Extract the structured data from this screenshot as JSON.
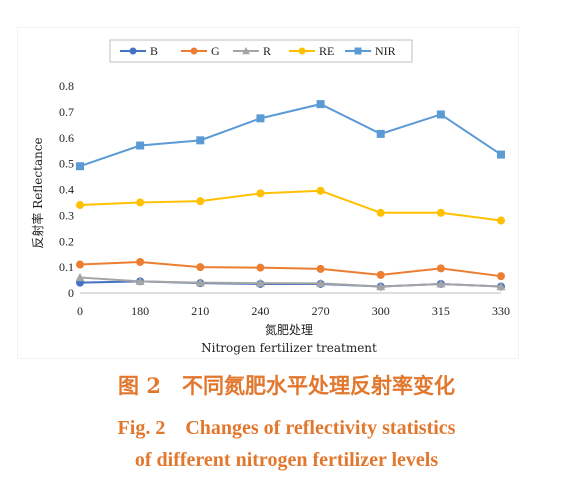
{
  "chart_data": {
    "type": "line",
    "categories": [
      "0",
      "180",
      "210",
      "240",
      "270",
      "300",
      "315",
      "330"
    ],
    "series": [
      {
        "name": "B",
        "color": "#4472c4",
        "marker": "circle",
        "values": [
          0.04,
          0.045,
          0.038,
          0.035,
          0.035,
          0.025,
          0.035,
          0.025
        ]
      },
      {
        "name": "G",
        "color": "#ed7d31",
        "marker": "circle",
        "values": [
          0.11,
          0.12,
          0.1,
          0.098,
          0.093,
          0.07,
          0.095,
          0.065
        ]
      },
      {
        "name": "R",
        "color": "#a5a5a5",
        "marker": "triangle",
        "values": [
          0.06,
          0.045,
          0.04,
          0.038,
          0.037,
          0.025,
          0.035,
          0.025
        ]
      },
      {
        "name": "RE",
        "color": "#ffc000",
        "marker": "circle",
        "values": [
          0.34,
          0.35,
          0.355,
          0.385,
          0.395,
          0.31,
          0.31,
          0.28
        ]
      },
      {
        "name": "NIR",
        "color": "#5b9bd5",
        "marker": "square",
        "values": [
          0.49,
          0.57,
          0.59,
          0.675,
          0.73,
          0.615,
          0.69,
          0.535
        ]
      }
    ],
    "ylim": [
      0,
      0.8
    ],
    "yticks": [
      "0",
      "0.1",
      "0.2",
      "0.3",
      "0.4",
      "0.5",
      "0.6",
      "0.7",
      "0.8"
    ],
    "ylabel": "反射率 Reflectance",
    "xlabel_cn": "氮肥处理",
    "xlabel_en": "Nitrogen fertilizer treatment",
    "legend_position": "top",
    "grid": false
  },
  "caption": {
    "cn": "图 2　不同氮肥水平处理反射率变化",
    "en_line1": "Fig. 2　Changes of reflectivity statistics",
    "en_line2": "of different nitrogen fertilizer levels"
  }
}
